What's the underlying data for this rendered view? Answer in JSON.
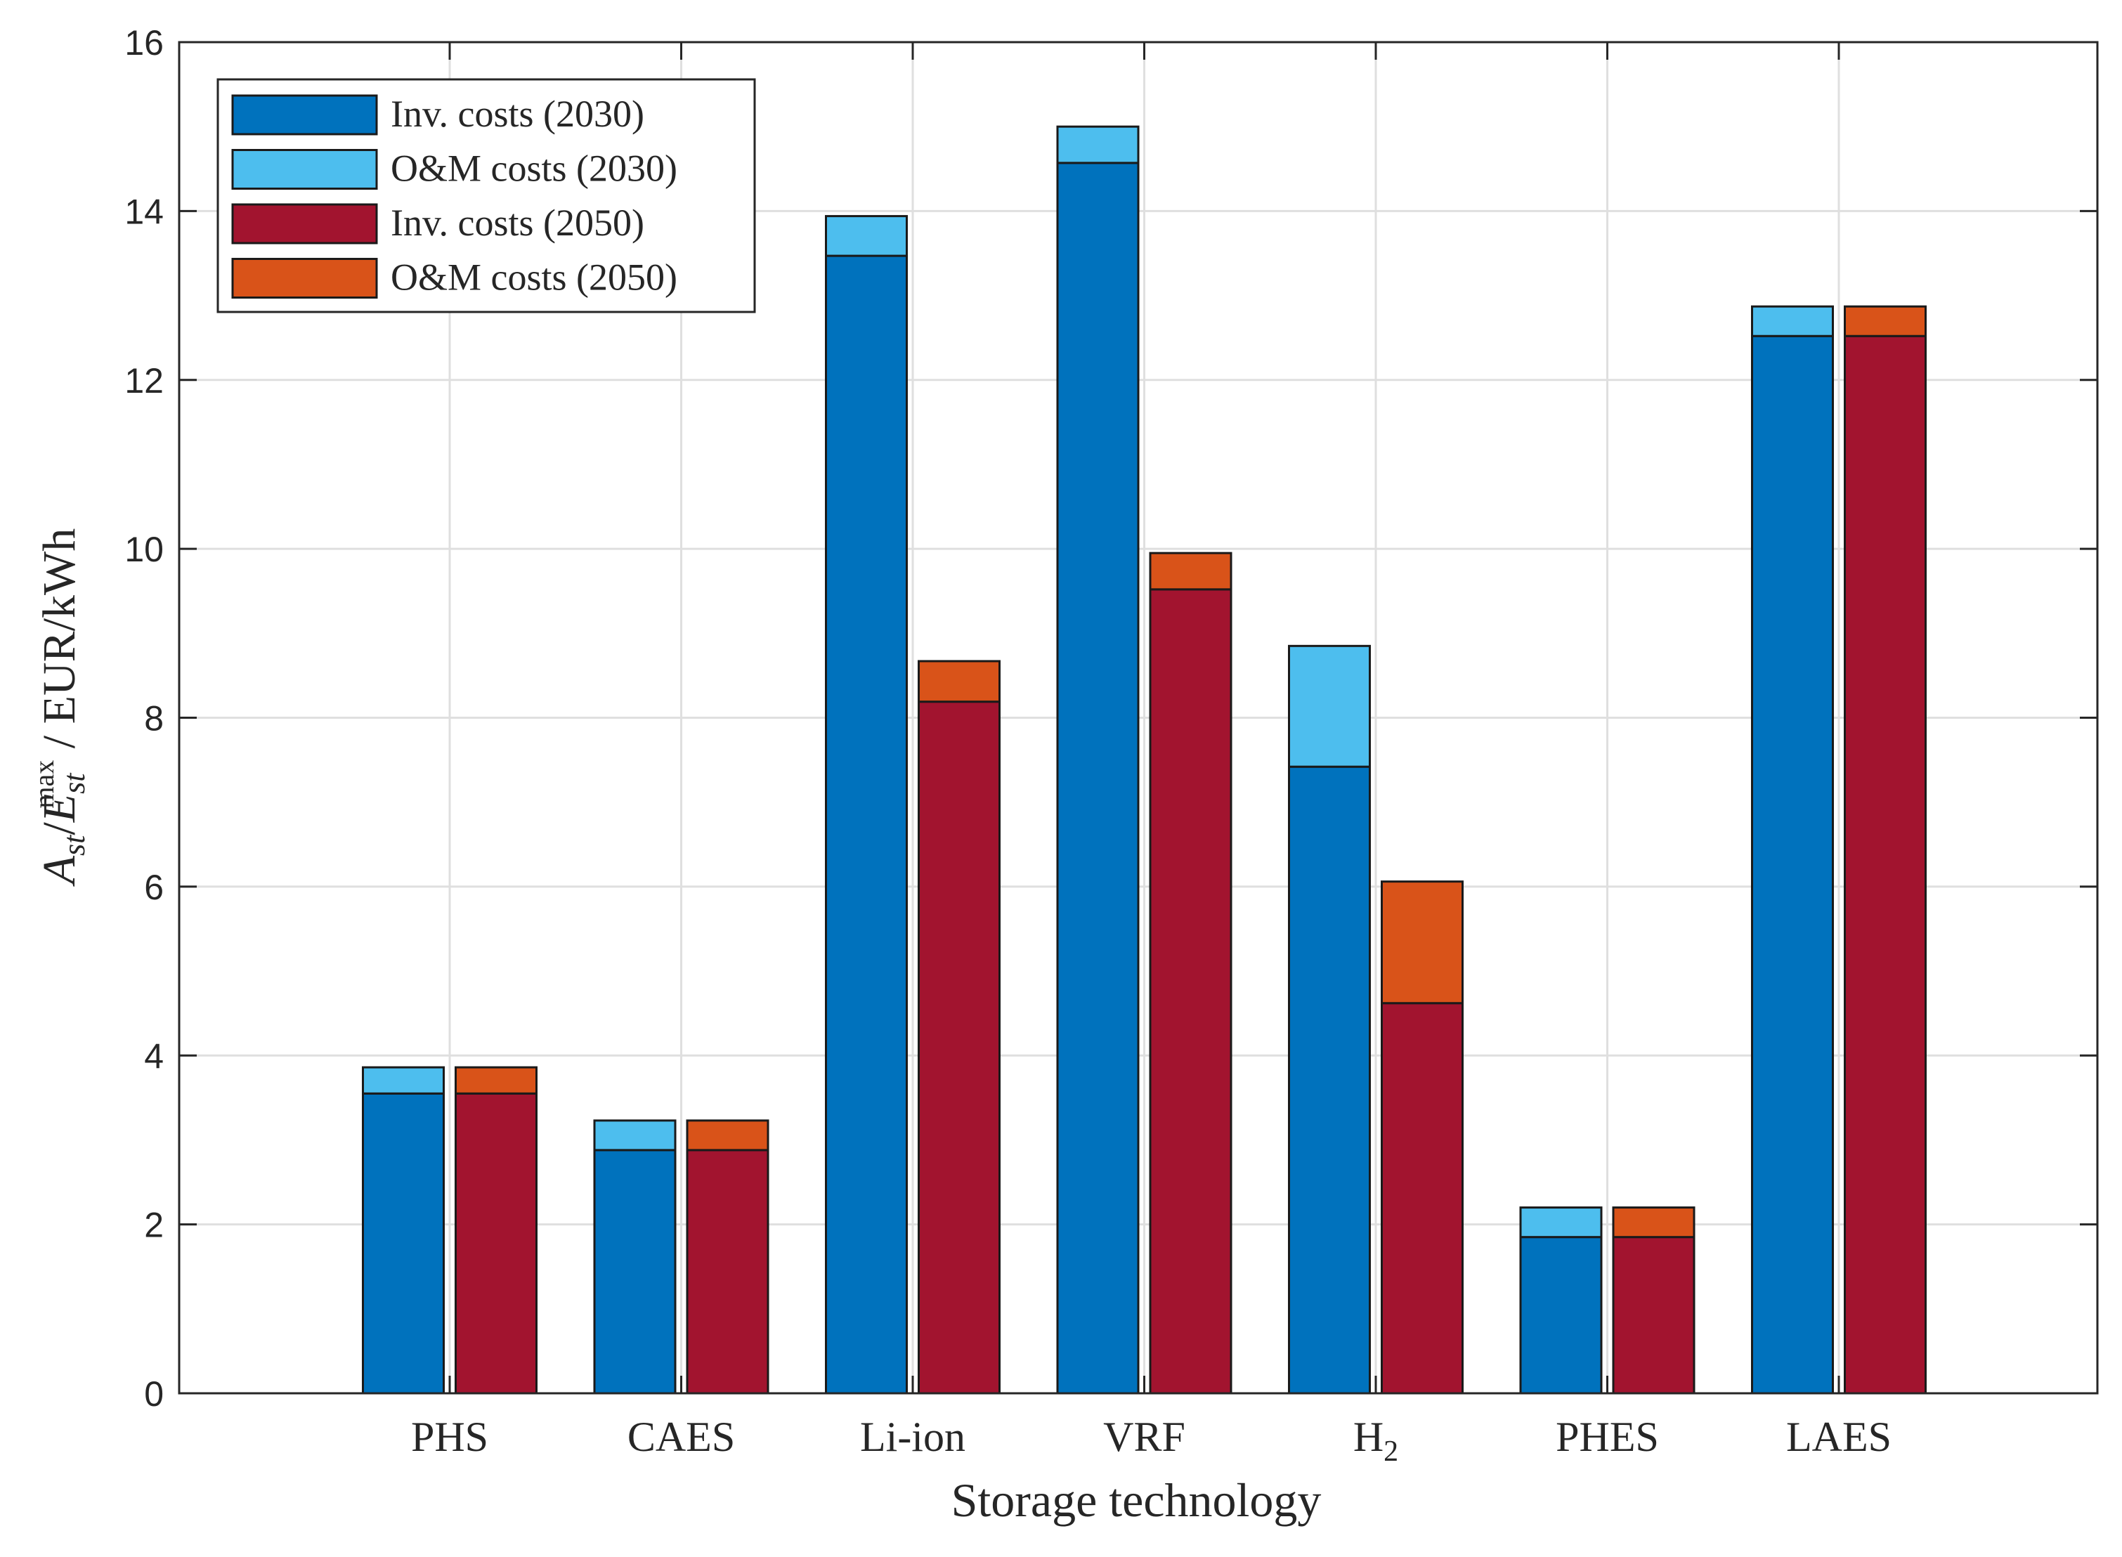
{
  "chart_data": {
    "type": "bar",
    "stacked": true,
    "grouped": true,
    "xlabel": "Storage technology",
    "ylabel": {
      "main": "A",
      "sub1": "st",
      "sep": "/",
      "main2": "E",
      "sub2": "st",
      "sup2": "max",
      "unit": " / EUR/kWh"
    },
    "ylim": [
      0,
      16
    ],
    "yticks": [
      "0",
      "2",
      "4",
      "6",
      "8",
      "10",
      "12",
      "14",
      "16"
    ],
    "grid": true,
    "categories": [
      {
        "label": "PHS",
        "sub": ""
      },
      {
        "label": "CAES",
        "sub": ""
      },
      {
        "label": "Li-ion",
        "sub": ""
      },
      {
        "label": "VRF",
        "sub": ""
      },
      {
        "label": "H",
        "sub": "2"
      },
      {
        "label": "PHES",
        "sub": ""
      },
      {
        "label": "LAES",
        "sub": ""
      }
    ],
    "series": [
      {
        "name": "Inv. costs (2030)",
        "group": "2030",
        "color": "#0072BD",
        "values": [
          3.55,
          2.88,
          13.47,
          14.57,
          7.42,
          1.85,
          12.52
        ]
      },
      {
        "name": "O&M costs (2030)",
        "group": "2030",
        "color": "#4DBEEE",
        "values": [
          0.31,
          0.35,
          0.47,
          0.43,
          1.43,
          0.35,
          0.35
        ]
      },
      {
        "name": "Inv. costs (2050)",
        "group": "2050",
        "color": "#A2142F",
        "values": [
          3.55,
          2.88,
          8.19,
          9.52,
          4.62,
          1.85,
          12.52
        ]
      },
      {
        "name": "O&M costs (2050)",
        "group": "2050",
        "color": "#D95319",
        "values": [
          0.31,
          0.35,
          0.48,
          0.43,
          1.44,
          0.35,
          0.35
        ]
      }
    ],
    "legend": "top-left"
  }
}
